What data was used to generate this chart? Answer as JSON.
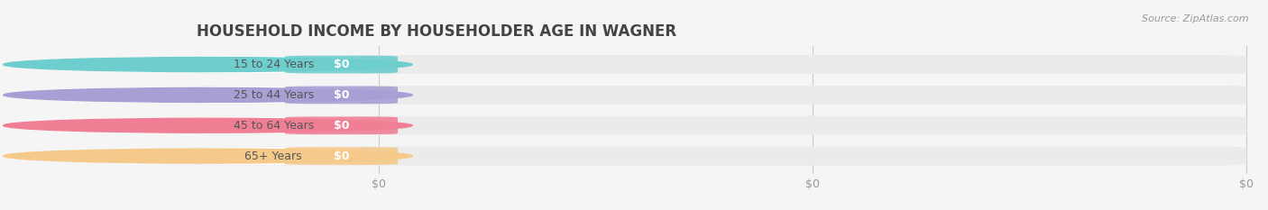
{
  "title": "HOUSEHOLD INCOME BY HOUSEHOLDER AGE IN WAGNER",
  "source": "Source: ZipAtlas.com",
  "categories": [
    "15 to 24 Years",
    "25 to 44 Years",
    "45 to 64 Years",
    "65+ Years"
  ],
  "values": [
    0,
    0,
    0,
    0
  ],
  "bar_colors": [
    "#6ecece",
    "#a99fd4",
    "#f07f95",
    "#f5c98a"
  ],
  "bar_bg_color": "#ebebeb",
  "pill_white_color": "#ffffff",
  "background_color": "#f5f5f5",
  "title_fontsize": 12,
  "value_label": "$0",
  "tick_labels": [
    "$0",
    "$0",
    "$0"
  ],
  "source_color": "#999999",
  "label_color": "#555555",
  "value_text_color": "#ffffff"
}
